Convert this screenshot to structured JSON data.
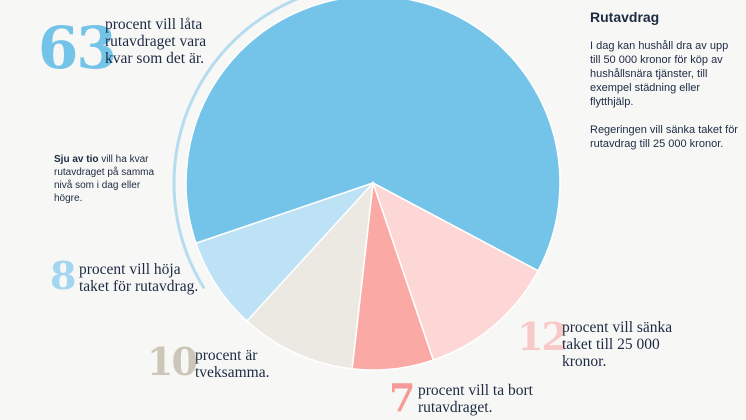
{
  "chart_data": {
    "type": "pie",
    "slices": [
      {
        "value": 63,
        "label": "procent vill låta\nrutavdraget vara\nkvar som det är.",
        "color": "#74c4e9"
      },
      {
        "value": 12,
        "label": "procent vill sänka\ntaket till 25 000\nkronor.",
        "color": "#fdd6d6"
      },
      {
        "value": 7,
        "label": "procent vill ta bort\nrutavdraget.",
        "color": "#fba9a5"
      },
      {
        "value": 10,
        "label": "procent är\ntveksamma.",
        "color": "#ece9e2"
      },
      {
        "value": 8,
        "label": "procent vill höja\ntaket för rutavdrag.",
        "color": "#bde2f5"
      }
    ]
  },
  "sidebar": {
    "title": "Rutavdrag",
    "body": "I dag kan hushåll dra av upp till 50 000 kronor för köp av hushållsnära tjänster, till exempel städning eller flytthjälp.\n\nRegeringen vill sänka taket för rutavdrag till 25 000 kronor."
  },
  "note": {
    "bold": "Sju av tio",
    "rest": " vill ha kvar rutavdraget på samma nivå som i dag eller högre."
  },
  "colors": {
    "arc": "#b6dcef",
    "num_63": "#74c4e9",
    "num_8": "#a3d6f0",
    "num_10": "#ccc6b8",
    "num_12": "#f8c9c9",
    "num_7": "#f59a96"
  }
}
